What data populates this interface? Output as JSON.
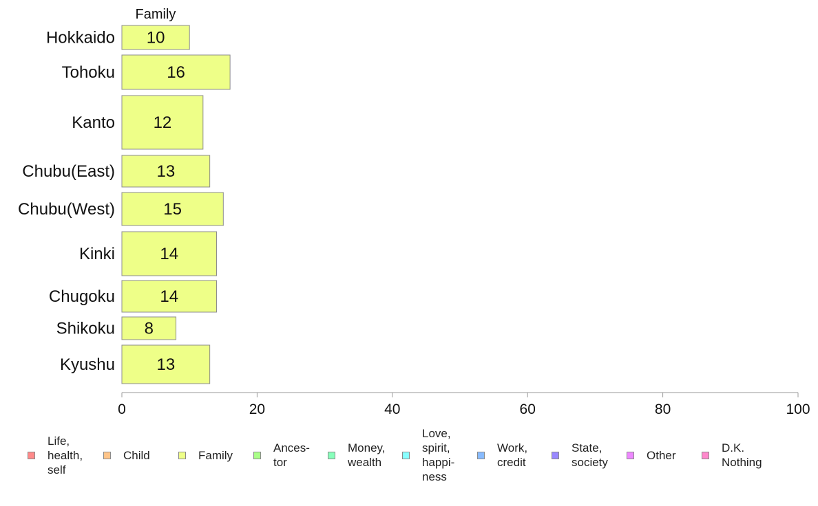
{
  "chart_data": {
    "type": "bar",
    "orientation": "horizontal",
    "series_label": "Family",
    "categories": [
      "Hokkaido",
      "Tohoku",
      "Kanto",
      "Chubu(East)",
      "Chubu(West)",
      "Kinki",
      "Chugoku",
      "Shikoku",
      "Kyushu"
    ],
    "values": [
      10,
      16,
      12,
      13,
      15,
      14,
      14,
      8,
      13
    ],
    "bar_color": "#eeff88",
    "xlim": [
      0,
      100
    ],
    "xticks": [
      0,
      20,
      40,
      60,
      80,
      100
    ],
    "legend": [
      {
        "label": "Life,\nhealth,\nself",
        "color": "#ff8a8a"
      },
      {
        "label": "Child",
        "color": "#ffc58a"
      },
      {
        "label": "Family",
        "color": "#eeff88"
      },
      {
        "label": "Ances-\ntor",
        "color": "#aaff88"
      },
      {
        "label": "Money,\nwealth",
        "color": "#88ffbb"
      },
      {
        "label": "Love,\nspirit,\nhappi-\nness",
        "color": "#88ffff"
      },
      {
        "label": "Work,\ncredit",
        "color": "#88bbff"
      },
      {
        "label": "State,\nsociety",
        "color": "#9988ff"
      },
      {
        "label": "Other",
        "color": "#ee88ff"
      },
      {
        "label": "D.K.\nNothing",
        "color": "#ff88cc"
      }
    ]
  }
}
